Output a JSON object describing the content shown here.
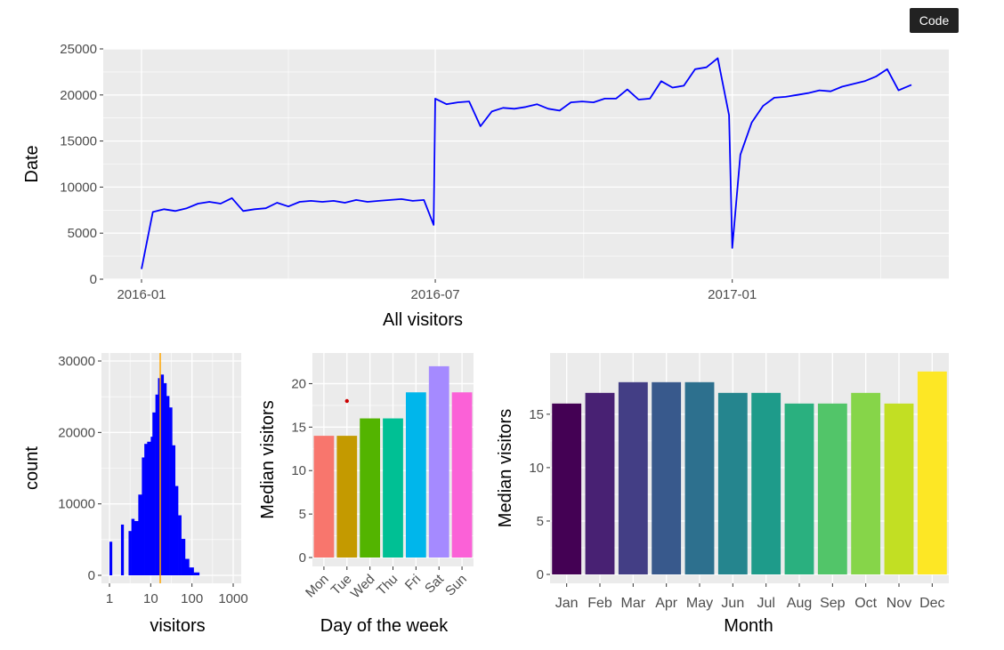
{
  "code_button": "Code",
  "chart_data": [
    {
      "type": "line",
      "xlabel": "All visitors",
      "ylabel": "Date",
      "x_range": [
        "2016-01-01",
        "2017-04-22"
      ],
      "ylim": [
        0,
        25000
      ],
      "yticks": [
        0,
        5000,
        10000,
        15000,
        20000,
        25000
      ],
      "xticks": [
        "2016-01",
        "2016-07",
        "2017-01"
      ],
      "grid": true,
      "color": "#0000ff",
      "series": [
        {
          "x": [
            "2016-01-01",
            "2016-01-08",
            "2016-01-15",
            "2016-01-22",
            "2016-01-29",
            "2016-02-05",
            "2016-02-12",
            "2016-02-19",
            "2016-02-26",
            "2016-03-04",
            "2016-03-11",
            "2016-03-18",
            "2016-03-25",
            "2016-04-01",
            "2016-04-08",
            "2016-04-15",
            "2016-04-22",
            "2016-04-29",
            "2016-05-06",
            "2016-05-13",
            "2016-05-20",
            "2016-05-27",
            "2016-06-03",
            "2016-06-10",
            "2016-06-17",
            "2016-06-24",
            "2016-06-30",
            "2016-07-01",
            "2016-07-08",
            "2016-07-15",
            "2016-07-22",
            "2016-07-29",
            "2016-08-05",
            "2016-08-12",
            "2016-08-19",
            "2016-08-26",
            "2016-09-02",
            "2016-09-09",
            "2016-09-16",
            "2016-09-23",
            "2016-09-30",
            "2016-10-07",
            "2016-10-14",
            "2016-10-21",
            "2016-10-28",
            "2016-11-04",
            "2016-11-11",
            "2016-11-18",
            "2016-11-25",
            "2016-12-02",
            "2016-12-09",
            "2016-12-16",
            "2016-12-23",
            "2016-12-30",
            "2017-01-01",
            "2017-01-06",
            "2017-01-13",
            "2017-01-20",
            "2017-01-27",
            "2017-02-03",
            "2017-02-10",
            "2017-02-17",
            "2017-02-24",
            "2017-03-03",
            "2017-03-10",
            "2017-03-17",
            "2017-03-24",
            "2017-03-31",
            "2017-04-07",
            "2017-04-14",
            "2017-04-22"
          ],
          "y": [
            1100,
            7300,
            7600,
            7400,
            7700,
            8200,
            8400,
            8200,
            8800,
            7400,
            7600,
            7700,
            8300,
            7900,
            8400,
            8500,
            8400,
            8500,
            8300,
            8600,
            8400,
            8500,
            8600,
            8700,
            8500,
            8600,
            5900,
            19600,
            19000,
            19200,
            19300,
            16600,
            18200,
            18600,
            18500,
            18700,
            19000,
            18500,
            18300,
            19200,
            19300,
            19200,
            19600,
            19600,
            20600,
            19500,
            19600,
            21500,
            20800,
            21000,
            22800,
            23000,
            24000,
            17800,
            3400,
            13500,
            17000,
            18800,
            19700,
            19800,
            20000,
            20200,
            20500,
            20400,
            20900,
            21200,
            21500,
            22000,
            22800,
            20500,
            21100
          ]
        }
      ]
    },
    {
      "type": "bar",
      "subtype": "histogram",
      "xlabel": "visitors",
      "ylabel": "count",
      "x_scale": "log10",
      "xticks": [
        1,
        10,
        100,
        1000
      ],
      "ylim": [
        0,
        30000
      ],
      "yticks": [
        0,
        10000,
        20000,
        30000
      ],
      "color": "#0000ff",
      "reference_line": {
        "x": 17,
        "color": "#ffa500"
      },
      "bins": [
        {
          "from": 1,
          "to": 1.15,
          "count": 4700
        },
        {
          "from": 1.9,
          "to": 2.2,
          "count": 7100
        },
        {
          "from": 2.9,
          "to": 3.4,
          "count": 6200
        },
        {
          "from": 3.4,
          "to": 4.0,
          "count": 7900
        },
        {
          "from": 4.0,
          "to": 5.0,
          "count": 7600
        },
        {
          "from": 5.0,
          "to": 6.1,
          "count": 11300
        },
        {
          "from": 6.1,
          "to": 7.0,
          "count": 16500
        },
        {
          "from": 7.0,
          "to": 8.2,
          "count": 18400
        },
        {
          "from": 8.2,
          "to": 10.0,
          "count": 18700
        },
        {
          "from": 10.0,
          "to": 11.0,
          "count": 19400
        },
        {
          "from": 11.0,
          "to": 13.0,
          "count": 22800
        },
        {
          "from": 13.0,
          "to": 15.0,
          "count": 25300
        },
        {
          "from": 15.0,
          "to": 17.5,
          "count": 27600
        },
        {
          "from": 17.5,
          "to": 20.5,
          "count": 28100
        },
        {
          "from": 20.5,
          "to": 24.0,
          "count": 26900
        },
        {
          "from": 24.0,
          "to": 28.0,
          "count": 25100
        },
        {
          "from": 28.0,
          "to": 33.0,
          "count": 23500
        },
        {
          "from": 33.0,
          "to": 39.0,
          "count": 18200
        },
        {
          "from": 39.0,
          "to": 46.0,
          "count": 12500
        },
        {
          "from": 46.0,
          "to": 55.0,
          "count": 8400
        },
        {
          "from": 55.0,
          "to": 68.0,
          "count": 5100
        },
        {
          "from": 68.0,
          "to": 85.0,
          "count": 2300
        },
        {
          "from": 85.0,
          "to": 110.0,
          "count": 1100
        },
        {
          "from": 110.0,
          "to": 150.0,
          "count": 400
        }
      ]
    },
    {
      "type": "bar",
      "xlabel": "Day of the week",
      "ylabel": "Median visitors",
      "categories": [
        "Mon",
        "Tue",
        "Wed",
        "Thu",
        "Fri",
        "Sat",
        "Sun"
      ],
      "values": [
        14,
        14,
        16,
        16,
        19,
        22,
        19
      ],
      "colors": [
        "#f8766d",
        "#c49a00",
        "#53b400",
        "#00c094",
        "#00b6eb",
        "#a58aff",
        "#fb61d7"
      ],
      "outlier": {
        "category": "Tue",
        "value": 18,
        "color": "#cc0000"
      },
      "ylim": [
        0,
        22.5
      ],
      "yticks": [
        0,
        5,
        10,
        15,
        20
      ]
    },
    {
      "type": "bar",
      "xlabel": "Month",
      "ylabel": "Median visitors",
      "categories": [
        "Jan",
        "Feb",
        "Mar",
        "Apr",
        "May",
        "Jun",
        "Jul",
        "Aug",
        "Sep",
        "Oct",
        "Nov",
        "Dec"
      ],
      "values": [
        16,
        17,
        18,
        18,
        18,
        17,
        17,
        16,
        16,
        17,
        16,
        19
      ],
      "colors": [
        "#440154",
        "#482173",
        "#433e85",
        "#38598c",
        "#2d708e",
        "#25858e",
        "#1e9b8a",
        "#2ab07f",
        "#52c569",
        "#86d549",
        "#c2df23",
        "#fde725"
      ],
      "ylim": [
        0,
        19.9
      ],
      "yticks": [
        0,
        5,
        10,
        15
      ]
    }
  ]
}
